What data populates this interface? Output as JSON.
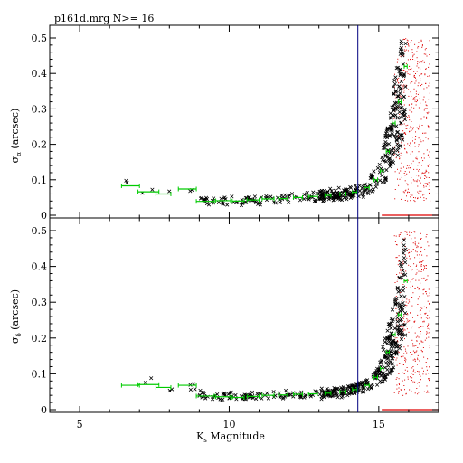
{
  "chart_data": {
    "type": "scatter",
    "title": "p161d.mrg   N>= 16",
    "xlabel_main": "K",
    "xlabel_sub": "s",
    "xlabel_rest": " Magnitude",
    "xlim": [
      4,
      17
    ],
    "x_ticks": [
      5,
      10,
      15
    ],
    "y_ticks": [
      0,
      0.1,
      0.2,
      0.3,
      0.4,
      0.5
    ],
    "y_tick_labels": [
      "0",
      "0.1",
      "0.2",
      "0.3",
      "0.4",
      "0.5"
    ],
    "limit_line_x": 14.3,
    "faint_limit_x": 15.1,
    "colors": {
      "stars": "#000000",
      "bins": "#00cc00",
      "limit": "#000080",
      "faint": "#dd0000"
    },
    "panels": [
      {
        "id": "top",
        "ylabel_main": "σ",
        "ylabel_sub": "α",
        "ylabel_rest": " (arcsec)",
        "ylim": [
          0,
          0.5
        ],
        "bins": [
          {
            "x": 6.7,
            "y": 0.083,
            "xerr": 0.3
          },
          {
            "x": 7.3,
            "y": 0.066,
            "xerr": 0.35
          },
          {
            "x": 7.8,
            "y": 0.06,
            "xerr": 0.25
          },
          {
            "x": 8.6,
            "y": 0.074,
            "xerr": 0.3
          },
          {
            "x": 9.2,
            "y": 0.039,
            "xerr": 0.3
          },
          {
            "x": 9.8,
            "y": 0.041,
            "xerr": 0.25
          },
          {
            "x": 10.3,
            "y": 0.04,
            "xerr": 0.2
          },
          {
            "x": 10.8,
            "y": 0.043,
            "xerr": 0.2
          },
          {
            "x": 11.3,
            "y": 0.046,
            "xerr": 0.2
          },
          {
            "x": 11.8,
            "y": 0.047,
            "xerr": 0.15
          },
          {
            "x": 12.3,
            "y": 0.05,
            "xerr": 0.15
          },
          {
            "x": 12.8,
            "y": 0.053,
            "xerr": 0.15
          },
          {
            "x": 13.3,
            "y": 0.056,
            "xerr": 0.1
          },
          {
            "x": 13.8,
            "y": 0.06,
            "xerr": 0.1
          },
          {
            "x": 14.2,
            "y": 0.065,
            "xerr": 0.08
          },
          {
            "x": 14.6,
            "y": 0.078,
            "xerr": 0.08
          },
          {
            "x": 14.9,
            "y": 0.1,
            "xerr": 0.06
          },
          {
            "x": 15.1,
            "y": 0.125,
            "xerr": 0.05
          },
          {
            "x": 15.3,
            "y": 0.18,
            "xerr": 0.05
          },
          {
            "x": 15.5,
            "y": 0.26,
            "xerr": 0.05
          },
          {
            "x": 15.7,
            "y": 0.32,
            "xerr": 0.05
          },
          {
            "x": 15.9,
            "y": 0.42,
            "xerr": 0.05
          }
        ]
      },
      {
        "id": "bottom",
        "ylabel_main": "σ",
        "ylabel_sub": "δ",
        "ylabel_rest": " (arcsec)",
        "ylim": [
          0,
          0.5
        ],
        "bins": [
          {
            "x": 6.7,
            "y": 0.068,
            "xerr": 0.3
          },
          {
            "x": 7.3,
            "y": 0.07,
            "xerr": 0.35
          },
          {
            "x": 7.8,
            "y": 0.062,
            "xerr": 0.25
          },
          {
            "x": 8.6,
            "y": 0.068,
            "xerr": 0.3
          },
          {
            "x": 9.2,
            "y": 0.038,
            "xerr": 0.3
          },
          {
            "x": 9.8,
            "y": 0.036,
            "xerr": 0.25
          },
          {
            "x": 10.3,
            "y": 0.034,
            "xerr": 0.2
          },
          {
            "x": 10.8,
            "y": 0.037,
            "xerr": 0.2
          },
          {
            "x": 11.3,
            "y": 0.04,
            "xerr": 0.2
          },
          {
            "x": 11.8,
            "y": 0.041,
            "xerr": 0.15
          },
          {
            "x": 12.3,
            "y": 0.043,
            "xerr": 0.15
          },
          {
            "x": 12.8,
            "y": 0.044,
            "xerr": 0.15
          },
          {
            "x": 13.3,
            "y": 0.046,
            "xerr": 0.1
          },
          {
            "x": 13.8,
            "y": 0.05,
            "xerr": 0.1
          },
          {
            "x": 14.2,
            "y": 0.056,
            "xerr": 0.08
          },
          {
            "x": 14.6,
            "y": 0.068,
            "xerr": 0.08
          },
          {
            "x": 14.9,
            "y": 0.09,
            "xerr": 0.06
          },
          {
            "x": 15.1,
            "y": 0.115,
            "xerr": 0.05
          },
          {
            "x": 15.3,
            "y": 0.16,
            "xerr": 0.05
          },
          {
            "x": 15.5,
            "y": 0.21,
            "xerr": 0.05
          },
          {
            "x": 15.7,
            "y": 0.265,
            "xerr": 0.05
          },
          {
            "x": 15.9,
            "y": 0.36,
            "xerr": 0.05
          }
        ]
      }
    ]
  }
}
